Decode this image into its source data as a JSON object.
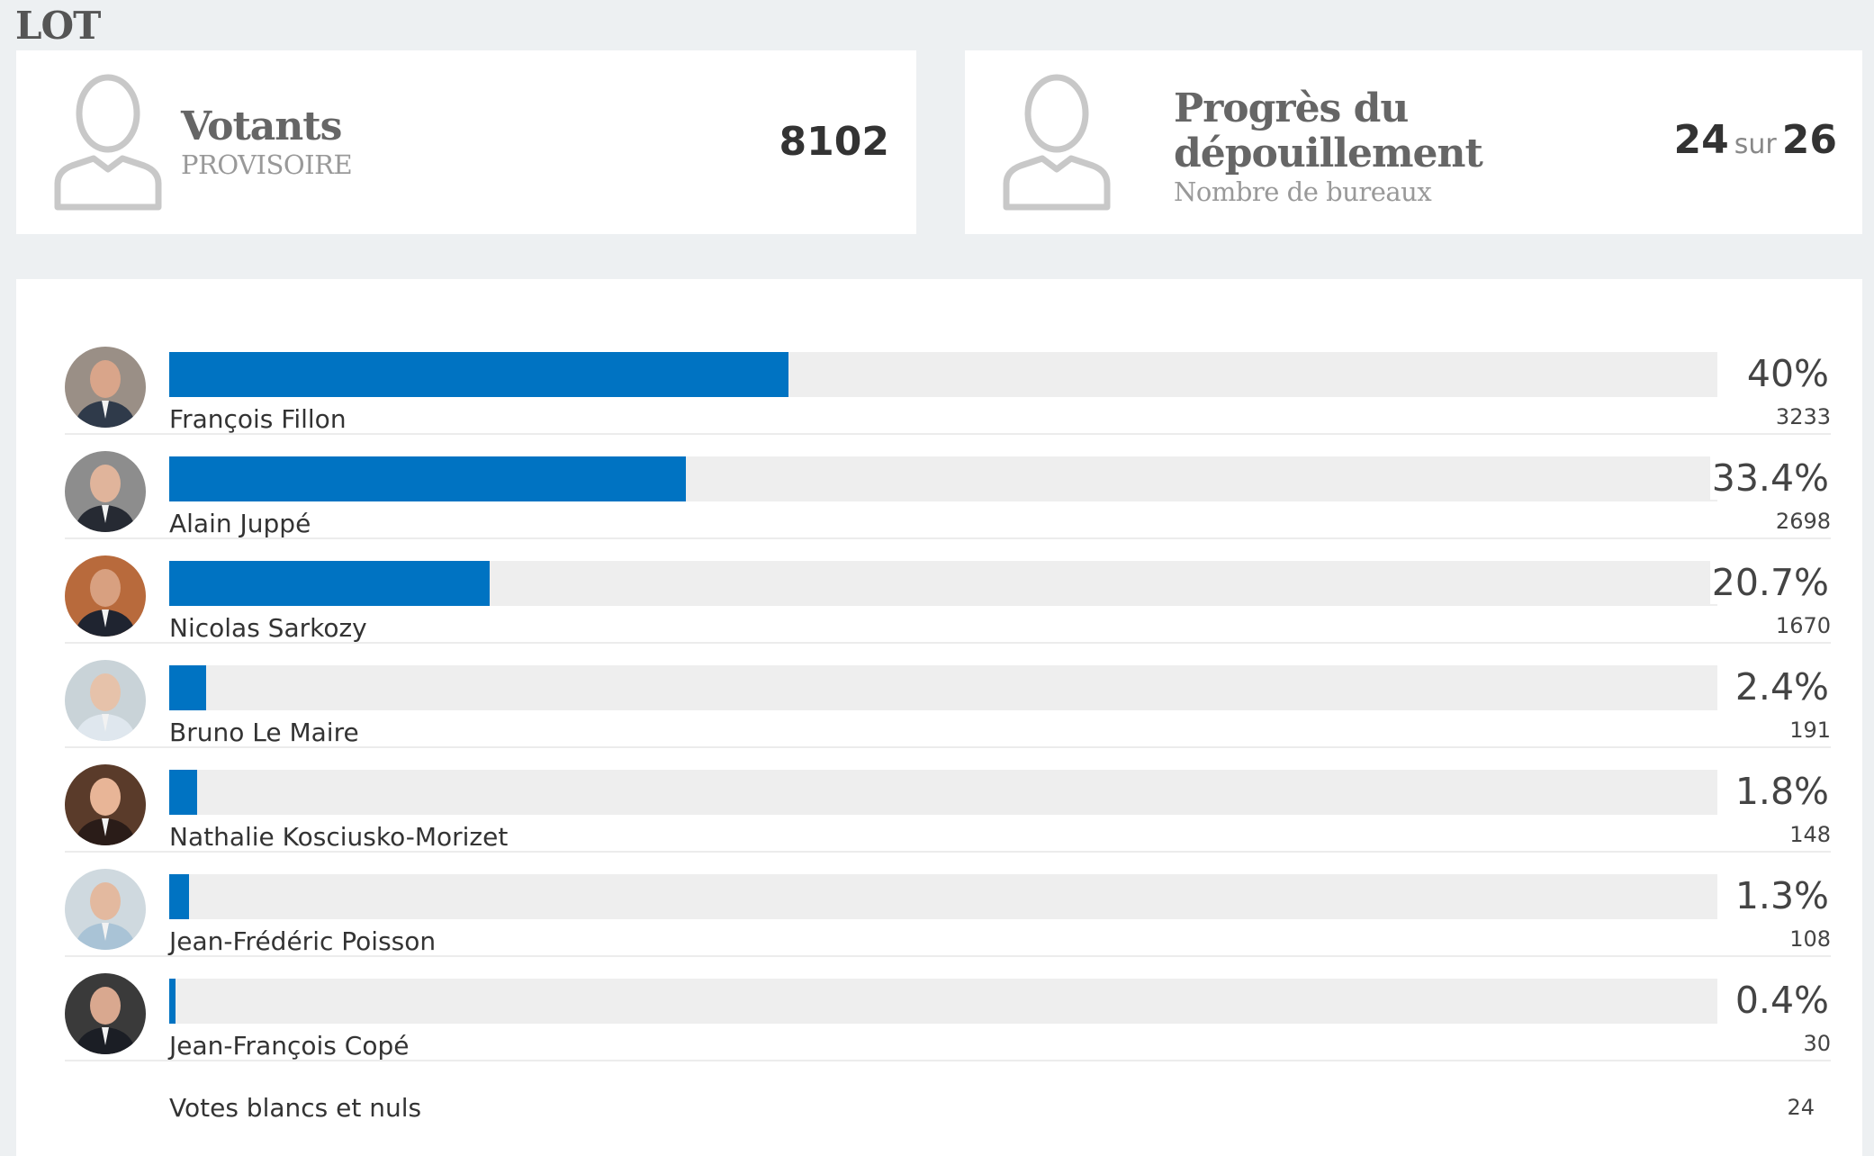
{
  "region": "LOT",
  "votants": {
    "title": "Votants",
    "subtitle": "PROVISOIRE",
    "count": "8102"
  },
  "progres": {
    "title": "Progrès du dépouillement",
    "subtitle": "Nombre de bureaux",
    "done": "24",
    "sep": "sur",
    "total": "26"
  },
  "colors": {
    "bar": "#0073c2",
    "track": "#eeeeee"
  },
  "chart_data": {
    "type": "bar",
    "orientation": "horizontal",
    "categories": [
      "François Fillon",
      "Alain Juppé",
      "Nicolas Sarkozy",
      "Bruno Le Maire",
      "Nathalie Kosciusko-Morizet",
      "Jean-Frédéric Poisson",
      "Jean-François Copé"
    ],
    "values": [
      40,
      33.4,
      20.7,
      2.4,
      1.8,
      1.3,
      0.4
    ],
    "value_labels": [
      "40%",
      "33.4%",
      "20.7%",
      "2.4%",
      "1.8%",
      "1.3%",
      "0.4%"
    ],
    "votes": [
      "3233",
      "2698",
      "1670",
      "191",
      "148",
      "108",
      "30"
    ],
    "xlim": [
      0,
      100
    ],
    "grid": false
  },
  "candidate_icons": [
    "avatar-francois-fillon",
    "avatar-alain-juppe",
    "avatar-nicolas-sarkozy",
    "avatar-bruno-le-maire",
    "avatar-nathalie-kosciusko-morizet",
    "avatar-jean-frederic-poisson",
    "avatar-jean-francois-cope"
  ],
  "blancs": {
    "label": "Votes blancs et nuls",
    "value": "24"
  }
}
